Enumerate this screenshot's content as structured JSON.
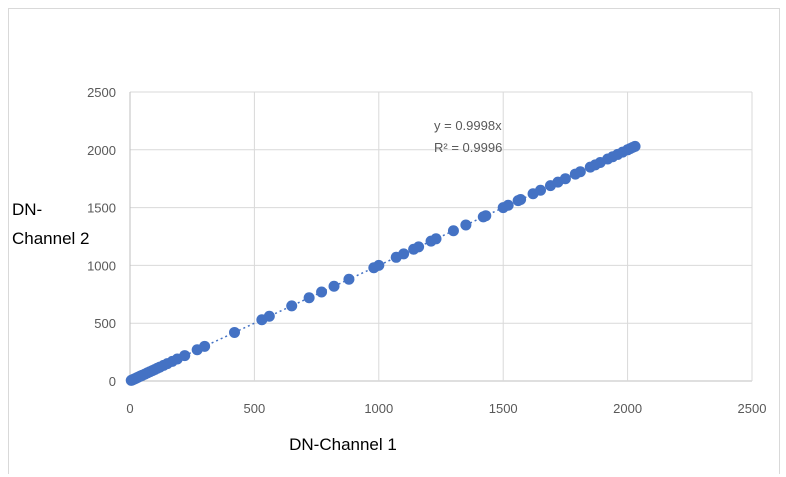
{
  "chart_data": {
    "type": "scatter",
    "title": "",
    "xlabel": "DN-Channel 1",
    "ylabel_lines": [
      "DN-",
      "Channel 2"
    ],
    "xlim": [
      0,
      2500
    ],
    "ylim": [
      0,
      2500
    ],
    "xticks": [
      "0",
      "500",
      "1000",
      "1500",
      "2000",
      "2500"
    ],
    "yticks": [
      "0",
      "500",
      "1000",
      "1500",
      "2000",
      "2500"
    ],
    "grid": true,
    "point_color": "#4472c4",
    "trendline": {
      "type": "linear",
      "slope": 0.9998,
      "style": "dotted"
    },
    "equation": "y = 0.9998x",
    "r_squared": "R² = 0.9996",
    "x": [
      5,
      10,
      15,
      20,
      25,
      30,
      35,
      40,
      45,
      50,
      60,
      70,
      80,
      90,
      100,
      110,
      120,
      135,
      150,
      170,
      190,
      220,
      270,
      300,
      420,
      530,
      560,
      650,
      720,
      770,
      820,
      880,
      980,
      1000,
      1070,
      1100,
      1140,
      1160,
      1210,
      1230,
      1300,
      1350,
      1420,
      1430,
      1500,
      1520,
      1560,
      1570,
      1620,
      1650,
      1690,
      1720,
      1750,
      1790,
      1810,
      1850,
      1870,
      1890,
      1920,
      1940,
      1960,
      1980,
      2000,
      2010,
      2020,
      2030
    ],
    "y": [
      5,
      10,
      15,
      20,
      25,
      30,
      35,
      40,
      45,
      50,
      60,
      70,
      80,
      90,
      100,
      110,
      120,
      135,
      150,
      170,
      190,
      220,
      270,
      300,
      420,
      530,
      560,
      650,
      720,
      770,
      820,
      880,
      980,
      1000,
      1070,
      1100,
      1140,
      1160,
      1210,
      1230,
      1300,
      1350,
      1420,
      1430,
      1500,
      1520,
      1560,
      1570,
      1620,
      1650,
      1690,
      1720,
      1750,
      1790,
      1810,
      1850,
      1870,
      1890,
      1920,
      1940,
      1960,
      1980,
      2000,
      2010,
      2020,
      2030
    ]
  }
}
